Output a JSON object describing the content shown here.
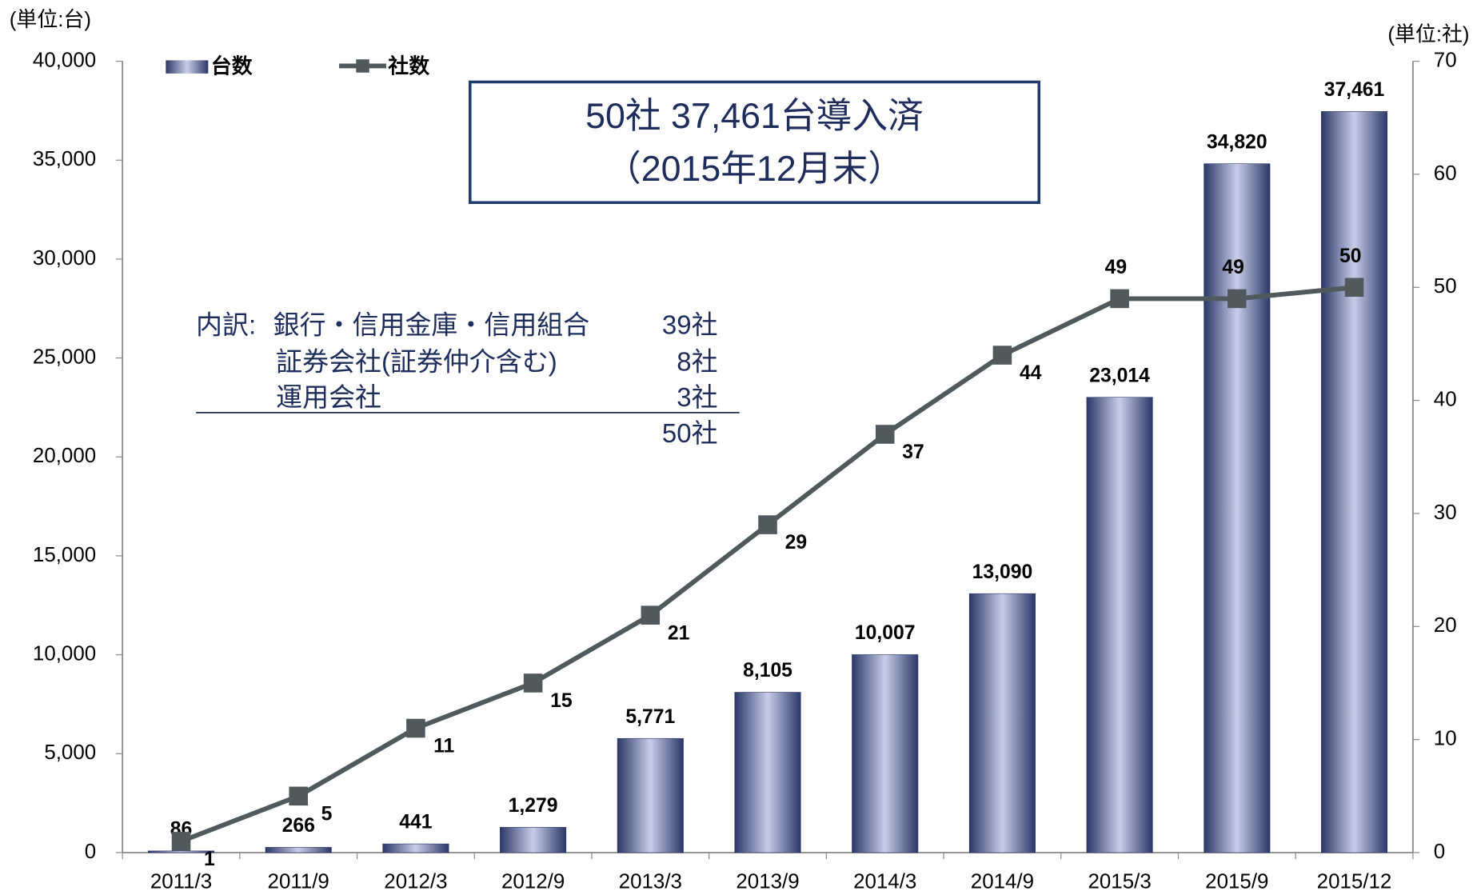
{
  "chart_data": {
    "type": "bar",
    "y_unit": "(単位:台)",
    "y2_unit": "(単位:社)",
    "callout": [
      "50社  37,461台導入済",
      "（2015年12月末）"
    ],
    "breakdown": {
      "prefix": "内訳:",
      "items": [
        {
          "label": "銀行・信用金庫・信用組合",
          "count": "39社"
        },
        {
          "label": "証券会社(証券仲介含む)",
          "count": "8社"
        },
        {
          "label": "運用会社",
          "count": "3社"
        }
      ],
      "total": "50社"
    },
    "categories": [
      "2011/3",
      "2011/9",
      "2012/3",
      "2012/9",
      "2013/3",
      "2013/9",
      "2014/3",
      "2014/9",
      "2015/3",
      "2015/9",
      "2015/12"
    ],
    "series": [
      {
        "name": "台数",
        "type": "bar",
        "color": "#2b3768",
        "values": [
          86,
          266,
          441,
          1279,
          5771,
          8105,
          10007,
          13090,
          23014,
          34820,
          37461
        ],
        "value_labels": [
          "86",
          "266",
          "441",
          "1,279",
          "5,771",
          "8,105",
          "10,007",
          "13,090",
          "23,014",
          "34,820",
          "37,461"
        ]
      },
      {
        "name": "社数",
        "type": "line",
        "axis": "y2",
        "color": "#50595c",
        "values": [
          1,
          5,
          11,
          15,
          21,
          29,
          37,
          44,
          49,
          49,
          50
        ]
      }
    ],
    "ylim": [
      0,
      40000
    ],
    "yticks": [
      0,
      {
        "value": 5000,
        "label": "5,000"
      },
      {
        "value": 10000,
        "label": "10,000"
      },
      {
        "value": 15000,
        "label": "15,000"
      },
      {
        "value": 20000,
        "label": "20,000"
      },
      {
        "value": 25000,
        "label": "25,000"
      },
      {
        "value": 30000,
        "label": "30,000"
      },
      {
        "value": 35000,
        "label": "35,000"
      },
      {
        "value": 40000,
        "label": "40,000"
      }
    ],
    "y2lim": [
      0,
      70
    ],
    "y2ticks": [
      0,
      10,
      20,
      30,
      40,
      50,
      60,
      70
    ],
    "legend": "top-left"
  }
}
